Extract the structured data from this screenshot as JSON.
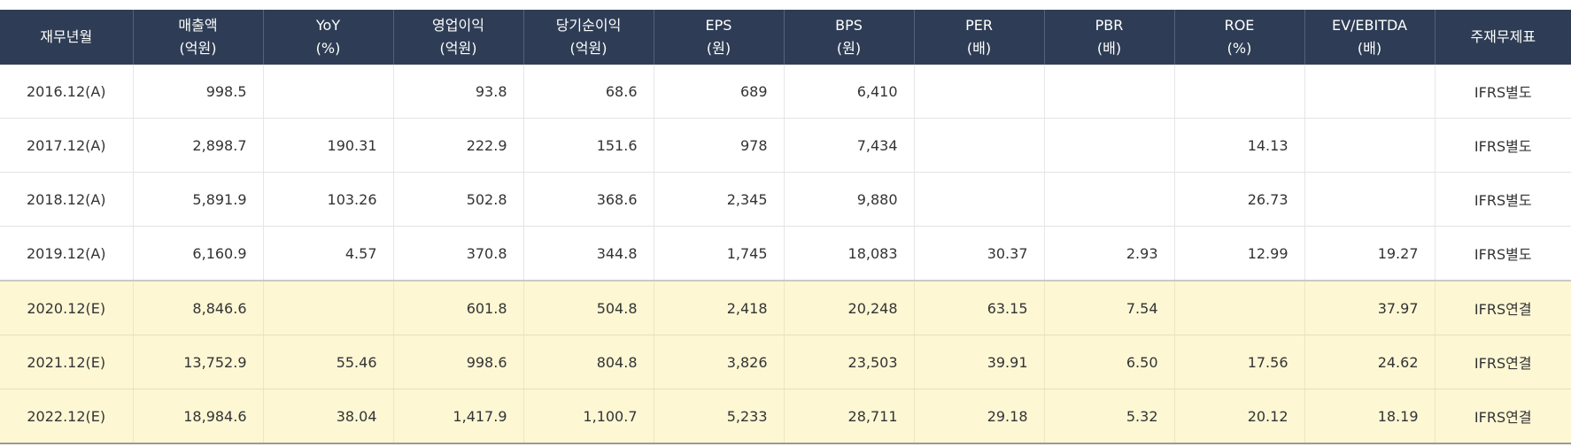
{
  "table": {
    "headers": [
      {
        "line1": "재무년월",
        "line2": ""
      },
      {
        "line1": "매출액",
        "line2": "(억원)"
      },
      {
        "line1": "YoY",
        "line2": "(%)"
      },
      {
        "line1": "영업이익",
        "line2": "(억원)"
      },
      {
        "line1": "당기순이익",
        "line2": "(억원)"
      },
      {
        "line1": "EPS",
        "line2": "(원)"
      },
      {
        "line1": "BPS",
        "line2": "(원)"
      },
      {
        "line1": "PER",
        "line2": "(배)"
      },
      {
        "line1": "PBR",
        "line2": "(배)"
      },
      {
        "line1": "ROE",
        "line2": "(%)"
      },
      {
        "line1": "EV/EBITDA",
        "line2": "(배)"
      },
      {
        "line1": "주재무제표",
        "line2": ""
      }
    ],
    "rows": [
      {
        "type": "actual",
        "cells": [
          "2016.12(A)",
          "998.5",
          "",
          "93.8",
          "68.6",
          "689",
          "6,410",
          "",
          "",
          "",
          "",
          "IFRS별도"
        ]
      },
      {
        "type": "actual",
        "cells": [
          "2017.12(A)",
          "2,898.7",
          "190.31",
          "222.9",
          "151.6",
          "978",
          "7,434",
          "",
          "",
          "14.13",
          "",
          "IFRS별도"
        ]
      },
      {
        "type": "actual",
        "cells": [
          "2018.12(A)",
          "5,891.9",
          "103.26",
          "502.8",
          "368.6",
          "2,345",
          "9,880",
          "",
          "",
          "26.73",
          "",
          "IFRS별도"
        ]
      },
      {
        "type": "actual",
        "cells": [
          "2019.12(A)",
          "6,160.9",
          "4.57",
          "370.8",
          "344.8",
          "1,745",
          "18,083",
          "30.37",
          "2.93",
          "12.99",
          "19.27",
          "IFRS별도"
        ]
      },
      {
        "type": "estimate",
        "cells": [
          "2020.12(E)",
          "8,846.6",
          "",
          "601.8",
          "504.8",
          "2,418",
          "20,248",
          "63.15",
          "7.54",
          "",
          "37.97",
          "IFRS연결"
        ]
      },
      {
        "type": "estimate",
        "cells": [
          "2021.12(E)",
          "13,752.9",
          "55.46",
          "998.6",
          "804.8",
          "3,826",
          "23,503",
          "39.91",
          "6.50",
          "17.56",
          "24.62",
          "IFRS연결"
        ]
      },
      {
        "type": "estimate",
        "cells": [
          "2022.12(E)",
          "18,984.6",
          "38.04",
          "1,417.9",
          "1,100.7",
          "5,233",
          "28,711",
          "29.18",
          "5.32",
          "20.12",
          "18.19",
          "IFRS연결"
        ]
      }
    ]
  },
  "colors": {
    "header_bg": "#2e3d55",
    "estimate_row_bg": "#fdf7d4"
  }
}
